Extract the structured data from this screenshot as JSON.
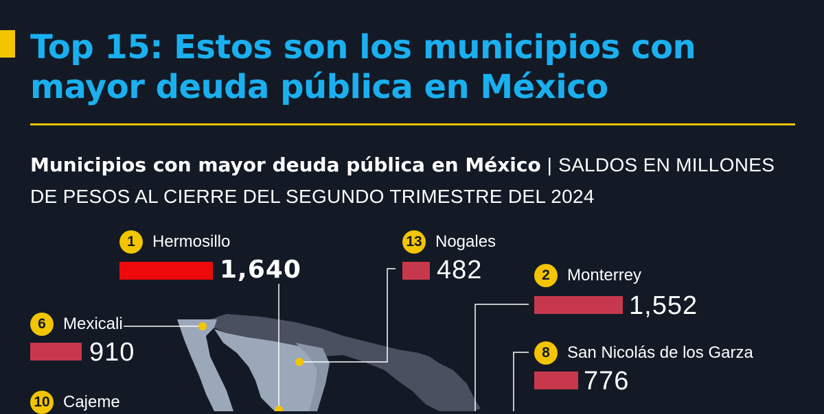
{
  "header": {
    "title": "Top 15: Estos son los municipios con mayor deuda pública en México"
  },
  "chart_data": {
    "type": "bar",
    "title": "Municipios con mayor deuda pública en México",
    "subtitle_separator": "|",
    "subtitle": "SALDOS EN MILLONES DE PESOS AL CIERRE DEL SEGUNDO TRIMESTRE DEL 2024",
    "items": [
      {
        "rank": "1",
        "name": "Hermosillo",
        "value": 1640,
        "label": "1,640",
        "color": "#ee0a0a"
      },
      {
        "rank": "13",
        "name": "Nogales",
        "value": 482,
        "label": "482",
        "color": "#c8384c"
      },
      {
        "rank": "2",
        "name": "Monterrey",
        "value": 1552,
        "label": "1,552",
        "color": "#c8384c"
      },
      {
        "rank": "6",
        "name": "Mexicali",
        "value": 910,
        "label": "910",
        "color": "#c8384c"
      },
      {
        "rank": "8",
        "name": "San Nicolás de los Garza",
        "value": 776,
        "label": "776",
        "color": "#c8384c"
      },
      {
        "rank": "10",
        "name": "Cajeme",
        "value": null,
        "label": "",
        "color": "#c8384c"
      }
    ]
  },
  "colors": {
    "background": "#131a26",
    "headline": "#1ab0f0",
    "accent": "#f2c500",
    "top_bar": "#ee0a0a",
    "bar": "#c8384c",
    "map_highlight": "#9aa8ba",
    "map_base": "#4a5060"
  }
}
